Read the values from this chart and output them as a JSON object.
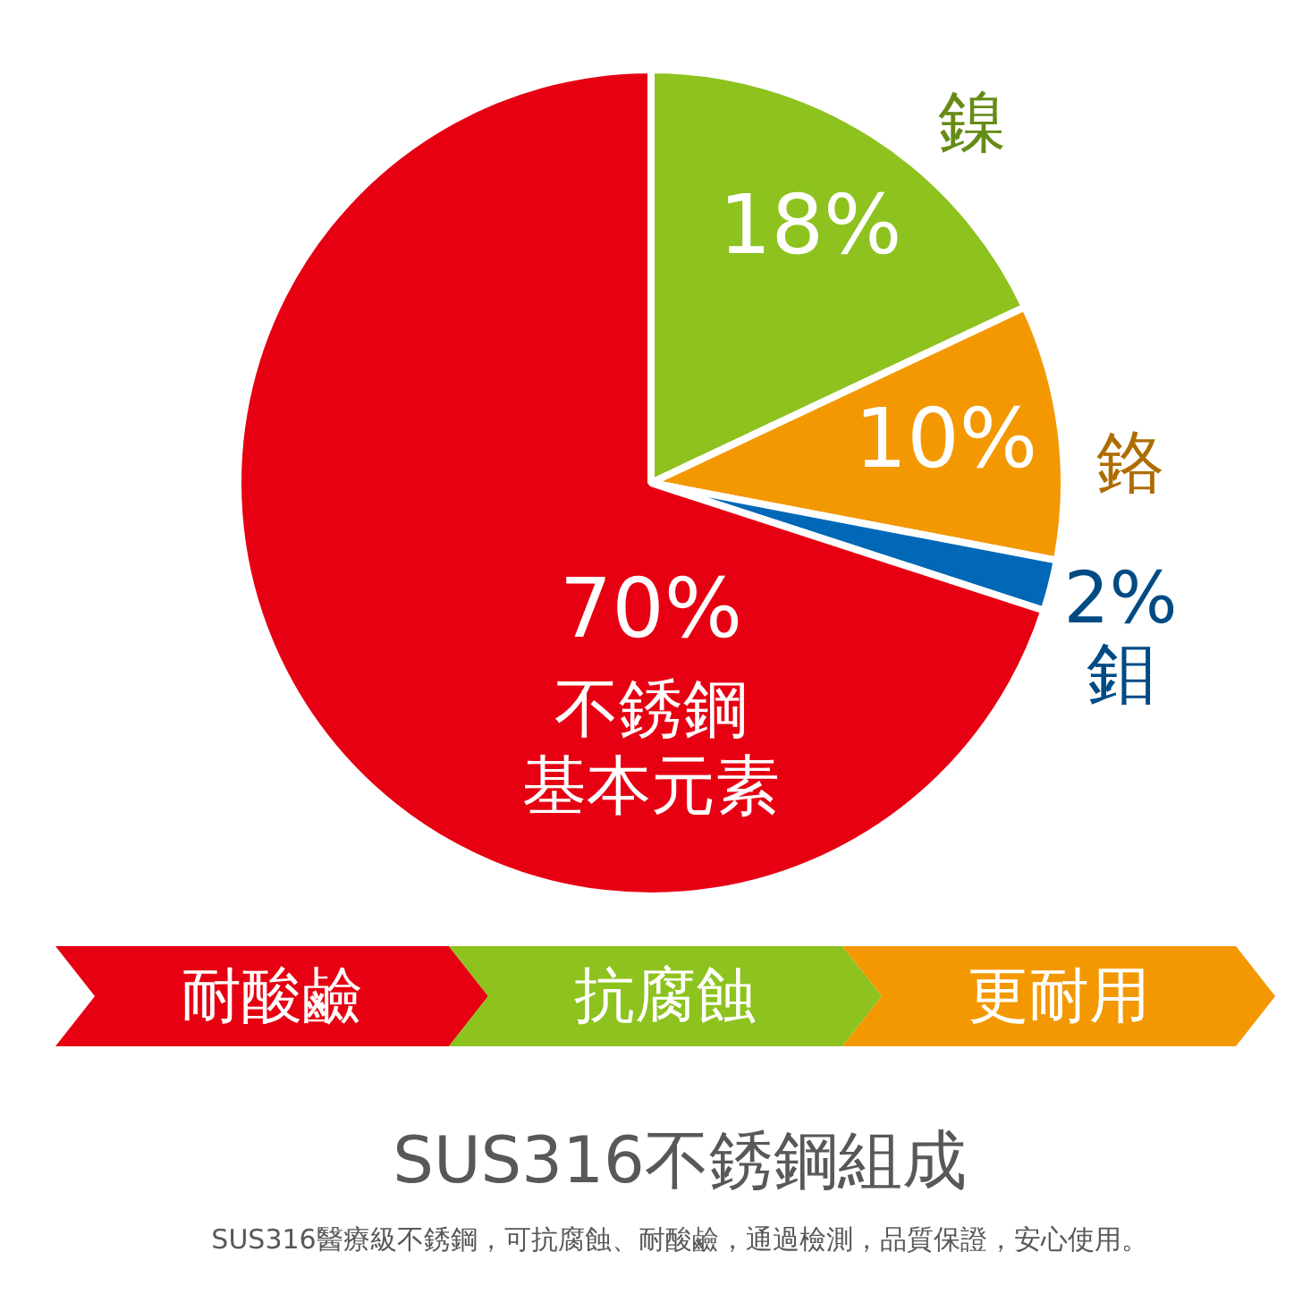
{
  "chart_data": {
    "type": "pie",
    "title": "SUS316不銹鋼組成",
    "subtitle": "SUS316醫療級不銹鋼，可抗腐蝕、耐酸鹼，通過檢測，品質保證，安心使用。",
    "categories": [
      "鎳",
      "鉻",
      "鉬",
      "不銹鋼基本元素"
    ],
    "values": [
      18,
      10,
      2,
      70
    ],
    "colors": [
      "#8dc21f",
      "#f39800",
      "#0068b7",
      "#e60012"
    ],
    "value_labels": [
      "18%",
      "10%",
      "2%",
      "70%"
    ],
    "annotations": [
      "耐酸鹼",
      "抗腐蝕",
      "更耐用"
    ]
  }
}
